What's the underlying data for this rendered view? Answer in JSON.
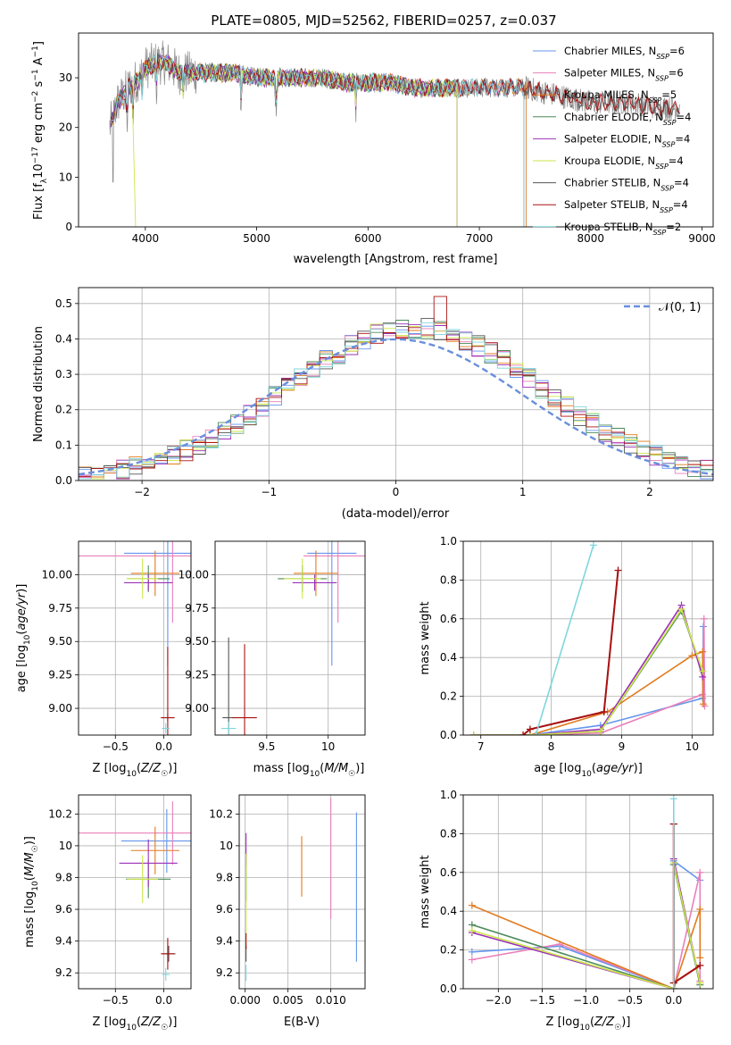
{
  "figure": {
    "title": "PLATE=0805, MJD=52562, FIBERID=0257, z=0.037"
  },
  "colors": {
    "c0": "#6495ed",
    "c1": "#e97fba",
    "c2": "#e07b1f",
    "c3": "#4c8a5a",
    "c4": "#9b30b9",
    "c5": "#cde64a",
    "c6": "#555555",
    "c7": "#aa1111",
    "c8": "#7fd6dc"
  },
  "chart_data": [
    {
      "id": "spectrum",
      "type": "line",
      "xlabel": "wavelength [Angstrom, rest frame]",
      "ylabel": "Flux [f_λ10^-17 erg cm^-2 s^-1 A^-1]",
      "xlim": [
        3400,
        9100
      ],
      "ylim": [
        0,
        39
      ],
      "xticks": [
        4000,
        5000,
        6000,
        7000,
        8000,
        9000
      ],
      "yticks": [
        0,
        10,
        20,
        30
      ],
      "grid": false,
      "legend_position": "top-right",
      "continuum": {
        "x": [
          3680,
          3750,
          3850,
          3950,
          4000,
          4100,
          4200,
          4300,
          4400,
          4600,
          4800,
          5000,
          5200,
          5400,
          5600,
          5800,
          6000,
          6200,
          6400,
          6600,
          6800,
          7000,
          7200,
          7400,
          7600,
          7800,
          8000,
          8200,
          8400,
          8600,
          8800
        ],
        "y": [
          20,
          25,
          28,
          30,
          32,
          33,
          33,
          31,
          31,
          31,
          31,
          30,
          30,
          30,
          30,
          29,
          29,
          29,
          28,
          28,
          28,
          28,
          28,
          28,
          27,
          26,
          25,
          25,
          25,
          24,
          24
        ]
      },
      "series": [
        {
          "name": "Chabrier MILES",
          "nssp": "6",
          "color": "#6495ed",
          "xmax": 7400
        },
        {
          "name": "Salpeter MILES",
          "nssp": "6",
          "color": "#e97fba",
          "xmax": 7400
        },
        {
          "name": "Kroupa MILES",
          "nssp": "5",
          "color": "#e07b1f",
          "xmax": 7420
        },
        {
          "name": "Chabrier ELODIE",
          "nssp": "4",
          "color": "#4c8a5a",
          "xmax": 6800
        },
        {
          "name": "Salpeter ELODIE",
          "nssp": "4",
          "color": "#9b30b9",
          "xmax": 6800
        },
        {
          "name": "Kroupa ELODIE",
          "nssp": "4",
          "color": "#cde64a",
          "xmax": 6800
        },
        {
          "name": "Chabrier STELIB",
          "nssp": "4",
          "color": "#555555",
          "xmax": 8800
        },
        {
          "name": "Salpeter STELIB",
          "nssp": "4",
          "color": "#aa1111",
          "xmax": 8800
        },
        {
          "name": "Kroupa STELIB",
          "nssp": "2",
          "color": "#7fd6dc",
          "xmax": 7400
        }
      ]
    },
    {
      "id": "residuals",
      "type": "step",
      "xlabel": "(data-model)/error",
      "ylabel": "Normed distribution",
      "xlim": [
        -2.5,
        2.5
      ],
      "ylim": [
        0,
        0.545
      ],
      "xticks": [
        -2,
        -1,
        0,
        1,
        2
      ],
      "yticks": [
        0.0,
        0.1,
        0.2,
        0.3,
        0.4,
        0.5
      ],
      "grid": true,
      "legend_position": "top-right",
      "reference": {
        "name": "𝒩(0, 1)",
        "mean": 0,
        "sigma": 1
      },
      "bin_width": 0.1
    },
    {
      "id": "age-vs-z",
      "type": "errorbar",
      "xlabel": "Z [log10(Z/Z☉)]",
      "ylabel": "age  [log10(age/yr)]",
      "xlim": [
        -0.88,
        0.28
      ],
      "ylim": [
        8.8,
        10.25
      ],
      "xticks": [
        -0.5,
        0.0
      ],
      "yticks": [
        9.0,
        9.25,
        9.5,
        9.75,
        10.0
      ],
      "points": [
        {
          "series": 0,
          "x": 0.04,
          "y": 10.16,
          "xerr": 0.45,
          "yerr": 0.84
        },
        {
          "series": 1,
          "x": 0.09,
          "y": 10.14,
          "xerr": 0.98,
          "yerr": 0.5
        },
        {
          "series": 2,
          "x": -0.09,
          "y": 10.01,
          "xerr": 0.25,
          "yerr": 0.17
        },
        {
          "series": 3,
          "x": -0.16,
          "y": 9.97,
          "xerr": 0.22,
          "yerr": 0.1
        },
        {
          "series": 4,
          "x": -0.16,
          "y": 9.94,
          "xerr": 0.25,
          "yerr": 0.06
        },
        {
          "series": 5,
          "x": -0.22,
          "y": 9.97,
          "xerr": 0.16,
          "yerr": 0.15
        },
        {
          "series": 6,
          "x": 0.04,
          "y": 8.93,
          "xerr": 0.07,
          "yerr": 0.03
        },
        {
          "series": 7,
          "x": 0.04,
          "y": 8.93,
          "xerr": 0.07,
          "yerr": 0.53
        },
        {
          "series": 8,
          "x": 0.02,
          "y": 8.85,
          "xerr": 0.04,
          "yerr": 0.04
        }
      ]
    },
    {
      "id": "age-vs-mass",
      "type": "errorbar",
      "xlabel": "mass [log10(M/M☉)]",
      "ylabel": "",
      "xlim": [
        9.08,
        10.3
      ],
      "ylim": [
        8.8,
        10.25
      ],
      "xticks": [
        9.5,
        10.0
      ],
      "yticks": [
        9.0,
        9.25,
        9.5,
        9.75,
        10.0
      ],
      "points": [
        {
          "series": 0,
          "x": 10.03,
          "y": 10.16,
          "xerr": 0.2,
          "yerr": 0.84
        },
        {
          "series": 1,
          "x": 10.08,
          "y": 10.14,
          "xerr": 0.28,
          "yerr": 0.5
        },
        {
          "series": 2,
          "x": 9.9,
          "y": 10.01,
          "xerr": 0.18,
          "yerr": 0.17
        },
        {
          "series": 3,
          "x": 9.79,
          "y": 9.97,
          "xerr": 0.2,
          "yerr": 0.1
        },
        {
          "series": 4,
          "x": 9.89,
          "y": 9.94,
          "xerr": 0.18,
          "yerr": 0.06
        },
        {
          "series": 5,
          "x": 9.79,
          "y": 9.97,
          "xerr": 0.15,
          "yerr": 0.15
        },
        {
          "series": 6,
          "x": 9.19,
          "y": 8.93,
          "xerr": 0.05,
          "yerr": 0.6
        },
        {
          "series": 7,
          "x": 9.32,
          "y": 8.93,
          "xerr": 0.1,
          "yerr": 0.55
        },
        {
          "series": 8,
          "x": 9.19,
          "y": 8.85,
          "xerr": 0.06,
          "yerr": 0.05
        }
      ]
    },
    {
      "id": "weight-vs-age",
      "type": "line",
      "xlabel": "age  [log10(age/yr)]",
      "ylabel": "mass weight",
      "xlim": [
        6.75,
        10.3
      ],
      "ylim": [
        0,
        1
      ],
      "xticks": [
        7,
        8,
        9,
        10
      ],
      "yticks": [
        0.0,
        0.2,
        0.4,
        0.6,
        0.8,
        1.0
      ],
      "grid": true,
      "series": [
        {
          "series": 0,
          "x": [
            6.9,
            7.7,
            8.7,
            10.15,
            10.16
          ],
          "y": [
            0.0,
            0.0,
            0.05,
            0.19,
            0.56
          ]
        },
        {
          "series": 1,
          "x": [
            6.9,
            7.7,
            8.7,
            10.15,
            10.17,
            10.18
          ],
          "y": [
            0.0,
            0.0,
            0.01,
            0.21,
            0.6,
            0.15
          ]
        },
        {
          "series": 2,
          "x": [
            6.9,
            7.7,
            8.8,
            10.0,
            10.15,
            10.16
          ],
          "y": [
            0.0,
            0.0,
            0.12,
            0.41,
            0.43,
            0.16
          ]
        },
        {
          "series": 3,
          "x": [
            6.9,
            7.7,
            8.7,
            9.85,
            10.15
          ],
          "y": [
            0.0,
            0.0,
            0.02,
            0.64,
            0.33
          ]
        },
        {
          "series": 4,
          "x": [
            6.9,
            7.7,
            8.7,
            9.85,
            10.15
          ],
          "y": [
            0.0,
            0.0,
            0.03,
            0.67,
            0.3
          ]
        },
        {
          "series": 5,
          "x": [
            6.9,
            7.7,
            8.7,
            9.85,
            10.15
          ],
          "y": [
            0.0,
            0.0,
            0.02,
            0.65,
            0.33
          ]
        },
        {
          "series": 6,
          "x": [
            7.6,
            7.7,
            8.75,
            8.95
          ],
          "y": [
            0.0,
            0.03,
            0.12,
            0.85
          ]
        },
        {
          "series": 7,
          "x": [
            7.6,
            7.7,
            8.75,
            8.95
          ],
          "y": [
            0.0,
            0.03,
            0.12,
            0.85
          ]
        },
        {
          "series": 8,
          "x": [
            7.78,
            8.6
          ],
          "y": [
            0.0,
            0.98
          ]
        }
      ]
    },
    {
      "id": "mass-vs-z",
      "type": "errorbar",
      "xlabel": "Z [log10(Z/Z☉)]",
      "ylabel": "mass [log10(M/M☉)]",
      "xlim": [
        -0.88,
        0.28
      ],
      "ylim": [
        9.1,
        10.32
      ],
      "xticks": [
        -0.5,
        0.0
      ],
      "yticks": [
        9.2,
        9.4,
        9.6,
        9.8,
        10.0,
        10.2
      ],
      "points": [
        {
          "series": 0,
          "x": 0.03,
          "y": 10.03,
          "xerr": 0.47,
          "yerr": 0.2
        },
        {
          "series": 1,
          "x": 0.09,
          "y": 10.08,
          "xerr": 0.99,
          "yerr": 0.2
        },
        {
          "series": 2,
          "x": -0.09,
          "y": 9.97,
          "xerr": 0.25,
          "yerr": 0.15
        },
        {
          "series": 3,
          "x": -0.16,
          "y": 9.79,
          "xerr": 0.23,
          "yerr": 0.12
        },
        {
          "series": 4,
          "x": -0.16,
          "y": 9.89,
          "xerr": 0.3,
          "yerr": 0.15
        },
        {
          "series": 5,
          "x": -0.22,
          "y": 9.79,
          "xerr": 0.16,
          "yerr": 0.15
        },
        {
          "series": 6,
          "x": 0.05,
          "y": 9.32,
          "xerr": 0.07,
          "yerr": 0.05
        },
        {
          "series": 7,
          "x": 0.04,
          "y": 9.32,
          "xerr": 0.07,
          "yerr": 0.1
        },
        {
          "series": 8,
          "x": 0.02,
          "y": 9.19,
          "xerr": 0.04,
          "yerr": 0.04
        }
      ]
    },
    {
      "id": "mass-vs-ebv",
      "type": "errorbar",
      "xlabel": "E(B-V)",
      "ylabel": "",
      "xlim": [
        -0.0007,
        0.014
      ],
      "ylim": [
        9.1,
        10.32
      ],
      "xticks": [
        0.0,
        0.005,
        0.01
      ],
      "xticklabels": [
        "0.000",
        "0.005",
        "0.010"
      ],
      "yticks": [
        9.2,
        9.4,
        9.6,
        9.8,
        10.0,
        10.2
      ],
      "points": [
        {
          "series": 0,
          "x": 0.013,
          "y": 9.74,
          "xerr": 0,
          "yerr": 0.47
        },
        {
          "series": 1,
          "x": 0.01,
          "y": 9.92,
          "xerr": 0,
          "yerr": 0.38
        },
        {
          "series": 2,
          "x": 0.0066,
          "y": 9.87,
          "xerr": 0,
          "yerr": 0.19
        },
        {
          "series": 3,
          "x": 0.0001,
          "y": 9.8,
          "xerr": 0,
          "yerr": 0.15
        },
        {
          "series": 4,
          "x": 0.0001,
          "y": 9.98,
          "xerr": 0,
          "yerr": 0.1
        },
        {
          "series": 5,
          "x": 0.0001,
          "y": 9.65,
          "xerr": 0,
          "yerr": 0.3
        },
        {
          "series": 6,
          "x": 0.0001,
          "y": 9.32,
          "xerr": 0,
          "yerr": 0.05
        },
        {
          "series": 7,
          "x": 0.0001,
          "y": 9.4,
          "xerr": 0,
          "yerr": 0.05
        },
        {
          "series": 8,
          "x": 0.0001,
          "y": 9.2,
          "xerr": 0,
          "yerr": 0.05
        }
      ]
    },
    {
      "id": "weight-vs-z",
      "type": "line",
      "xlabel": "Z [log10(Z/Z☉)]",
      "ylabel": "mass weight",
      "xlim": [
        -2.4,
        0.45
      ],
      "ylim": [
        0,
        1
      ],
      "xticks": [
        -2.0,
        -1.5,
        -1.0,
        -0.5,
        0.0
      ],
      "yticks": [
        0.0,
        0.2,
        0.4,
        0.6,
        0.8,
        1.0
      ],
      "grid": true,
      "series": [
        {
          "series": 0,
          "x": [
            -2.3,
            -1.3,
            0.0,
            0.0,
            0.3
          ],
          "y": [
            0.19,
            0.22,
            0.0,
            0.66,
            0.56
          ]
        },
        {
          "series": 1,
          "x": [
            -2.3,
            -1.3,
            0.0,
            0.3,
            0.3
          ],
          "y": [
            0.15,
            0.23,
            0.0,
            0.6,
            0.04
          ]
        },
        {
          "series": 2,
          "x": [
            -2.3,
            0.0,
            0.3,
            0.3
          ],
          "y": [
            0.43,
            0.0,
            0.41,
            0.16
          ]
        },
        {
          "series": 3,
          "x": [
            -2.3,
            0.0,
            0.0,
            0.3
          ],
          "y": [
            0.33,
            0.0,
            0.64,
            0.02
          ]
        },
        {
          "series": 4,
          "x": [
            -2.3,
            0.0,
            0.0,
            0.3
          ],
          "y": [
            0.29,
            0.0,
            0.67,
            0.03
          ]
        },
        {
          "series": 5,
          "x": [
            -2.3,
            0.0,
            0.0,
            0.3
          ],
          "y": [
            0.3,
            0.0,
            0.65,
            0.03
          ]
        },
        {
          "series": 6,
          "x": [
            0.0,
            0.0,
            0.3
          ],
          "y": [
            0.85,
            0.03,
            0.12
          ]
        },
        {
          "series": 7,
          "x": [
            0.0,
            0.0,
            0.3
          ],
          "y": [
            0.85,
            0.03,
            0.12
          ]
        },
        {
          "series": 8,
          "x": [
            0.0,
            0.0
          ],
          "y": [
            0.98,
            0.0
          ]
        }
      ]
    }
  ]
}
